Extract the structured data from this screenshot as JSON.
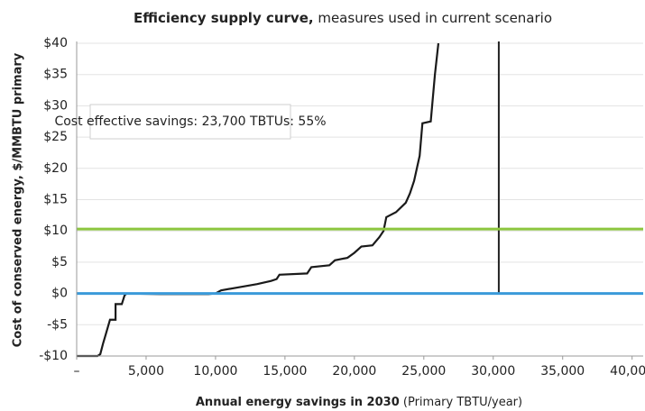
{
  "chart_data": {
    "type": "line",
    "title": "Efficiency supply curve,",
    "subtitle": "measures used in current scenario",
    "x_label": "Annual energy savings in 2030",
    "x_label_units": "(Primary TBTU/year)",
    "y_label": "Cost of conserved energy, $/MMBTU primary",
    "annotation": "Cost effective savings: 23,700 TBTUs: 55%",
    "xlim": [
      0,
      40800
    ],
    "ylim": [
      -10,
      40
    ],
    "xticks": [
      {
        "value": 0,
        "label": "–"
      },
      {
        "value": 5000,
        "label": "5,000"
      },
      {
        "value": 10000,
        "label": "10,000"
      },
      {
        "value": 15000,
        "label": "15,000"
      },
      {
        "value": 20000,
        "label": "20,000"
      },
      {
        "value": 25000,
        "label": "25,000"
      },
      {
        "value": 30000,
        "label": "30,000"
      },
      {
        "value": 35000,
        "label": "35,000"
      },
      {
        "value": 40000,
        "label": "40,000"
      }
    ],
    "yticks": [
      {
        "value": -10,
        "label": "-$10"
      },
      {
        "value": -5,
        "label": "-$5"
      },
      {
        "value": 0,
        "label": "$0"
      },
      {
        "value": 5,
        "label": "$5"
      },
      {
        "value": 10,
        "label": "$10"
      },
      {
        "value": 15,
        "label": "$15"
      },
      {
        "value": 20,
        "label": "$20"
      },
      {
        "value": 25,
        "label": "$25"
      },
      {
        "value": 30,
        "label": "$30"
      },
      {
        "value": 35,
        "label": "$35"
      },
      {
        "value": 40,
        "label": "$40"
      }
    ],
    "grid": true,
    "hlines": [
      {
        "value": 10.3,
        "color": "#8dc63f"
      },
      {
        "value": 0,
        "color": "#3a9ad9"
      }
    ],
    "vlines": [
      {
        "value": 30400,
        "color": "#222222"
      }
    ],
    "series": [
      {
        "color": "#1a1a1a",
        "x": [
          0,
          1500,
          1700,
          1900,
          2100,
          2400,
          2800,
          2800,
          3250,
          3450,
          3600,
          6000,
          9500,
          10000,
          10400,
          11700,
          13000,
          14000,
          14400,
          14600,
          16600,
          16900,
          18200,
          18600,
          19500,
          20000,
          20500,
          21300,
          21800,
          22100,
          22300,
          23000,
          23700,
          24000,
          24300,
          24500,
          24700,
          24900,
          25500,
          25600,
          25800,
          25950,
          26050
        ],
        "values": [
          -10,
          -10,
          -9.7,
          -8,
          -6.5,
          -4.2,
          -4.2,
          -1.7,
          -1.7,
          -0.3,
          0,
          -0.1,
          -0.1,
          0,
          0.5,
          1,
          1.5,
          2,
          2.3,
          3,
          3.2,
          4.2,
          4.5,
          5.3,
          5.7,
          6.5,
          7.5,
          7.7,
          9,
          10,
          12.2,
          13,
          14.5,
          16,
          18,
          20,
          22,
          27.2,
          27.5,
          30,
          35,
          38,
          40
        ]
      }
    ]
  }
}
